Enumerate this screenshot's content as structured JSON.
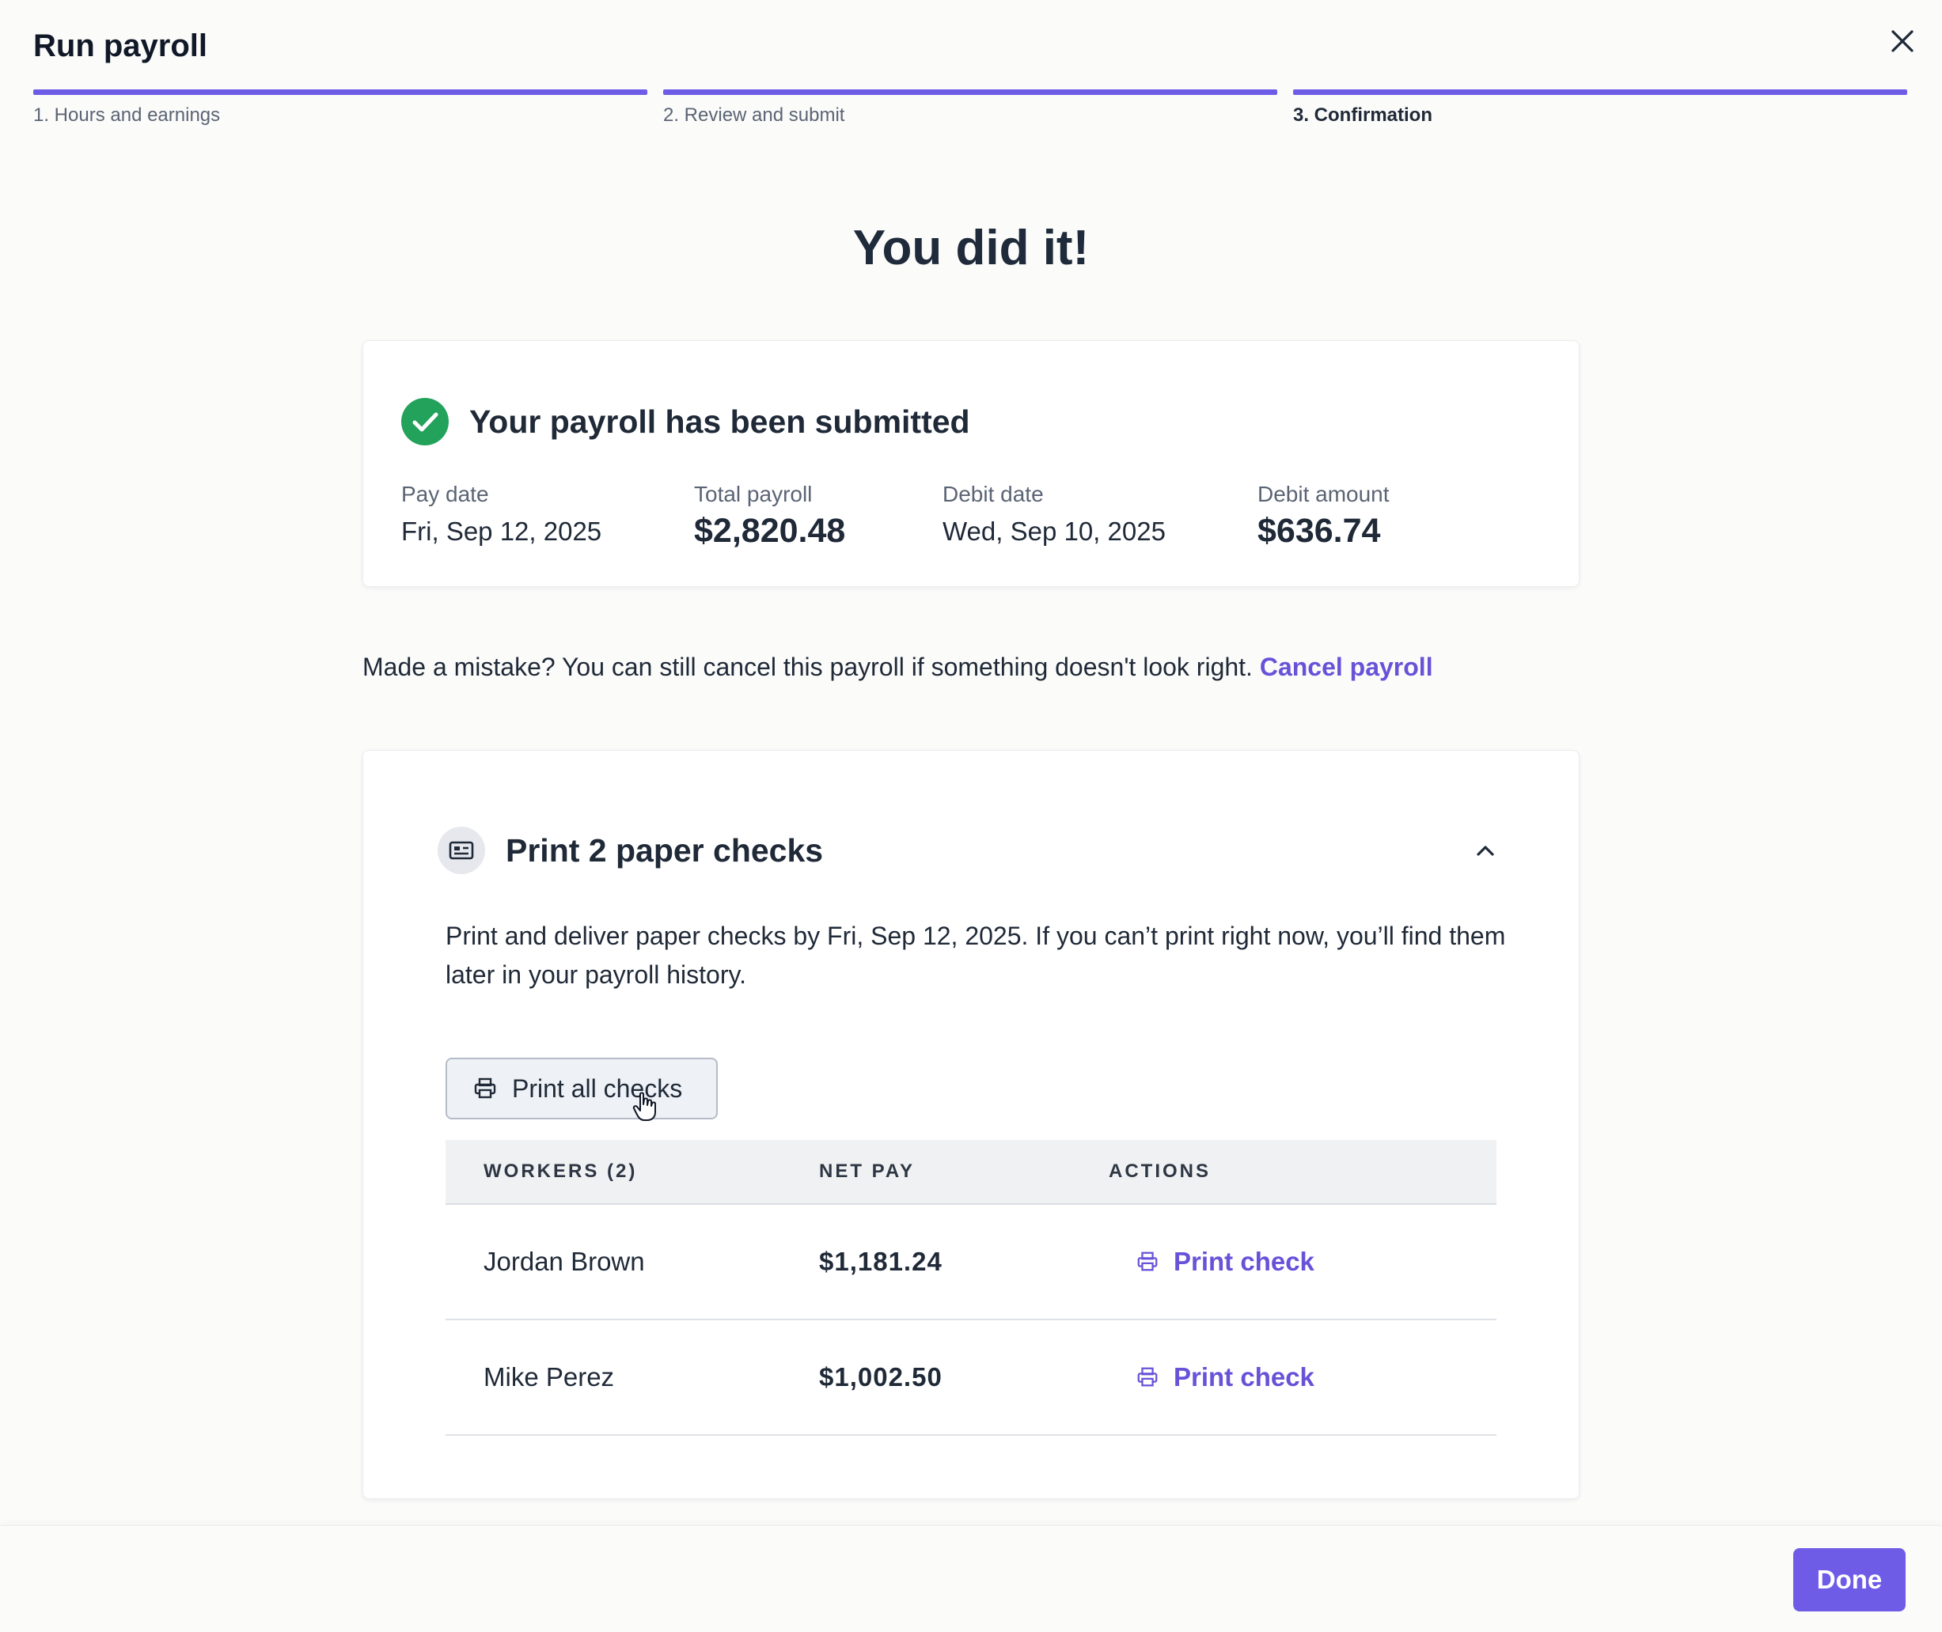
{
  "header": {
    "title": "Run payroll",
    "close_icon": "close-icon"
  },
  "stepper": [
    {
      "label": "1. Hours and earnings",
      "state": "complete"
    },
    {
      "label": "2. Review and submit",
      "state": "complete"
    },
    {
      "label": "3. Confirmation",
      "state": "current"
    }
  ],
  "hero": {
    "title": "You did it!"
  },
  "summary": {
    "title": "Your payroll has been submitted",
    "status_icon": "check-circle-icon",
    "metrics": [
      {
        "label": "Pay date",
        "value": "Fri, Sep 12, 2025"
      },
      {
        "label": "Total payroll",
        "value": "$2,820.48"
      },
      {
        "label": "Debit date",
        "value": "Wed, Sep 10, 2025"
      },
      {
        "label": "Debit amount",
        "value": "$636.74"
      }
    ]
  },
  "mistake": {
    "text": "Made a mistake? You can still cancel this payroll if something doesn't look right.",
    "link": "Cancel payroll"
  },
  "checks": {
    "title": "Print 2 paper checks",
    "icon": "check-document-icon",
    "expanded": true,
    "description": "Print and deliver paper checks by Fri, Sep 12, 2025. If you can’t print right now, you’ll find them later in your payroll history.",
    "print_all_label": "Print all checks",
    "table": {
      "columns": [
        "WORKERS (2)",
        "NET PAY",
        "ACTIONS"
      ],
      "rows": [
        {
          "worker": "Jordan Brown",
          "net_pay": "$1,181.24",
          "action": "Print check"
        },
        {
          "worker": "Mike Perez",
          "net_pay": "$1,002.50",
          "action": "Print check"
        }
      ]
    }
  },
  "footer": {
    "done_label": "Done"
  },
  "colors": {
    "accent": "#6e5ce6",
    "link": "#6752d8",
    "success": "#22a25a"
  }
}
